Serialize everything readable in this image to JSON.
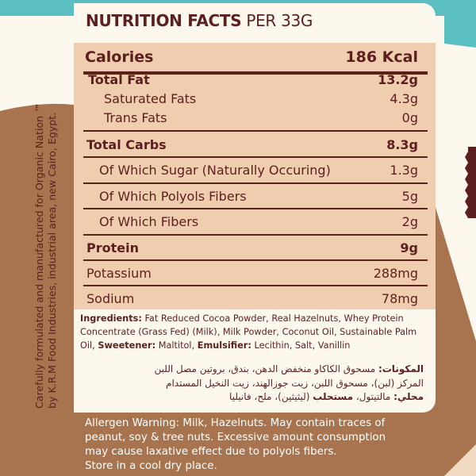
{
  "colors": {
    "teal": "#5bbfc2",
    "brown": "#a8744f",
    "cream": "#fcf8ee",
    "peach": "#efcdae",
    "text": "#5b1f1f"
  },
  "side_text": [
    "Carefully formulated and manufactured for Organic Nation ™",
    "by K.R.M Food Industries, industrial area, new Cairo, Egypt."
  ],
  "title": {
    "main": "NUTRITION FACTS",
    "per": "PER 33G"
  },
  "rows": [
    {
      "label": "Calories",
      "value": "186 Kcal"
    },
    {
      "label": "Total Fat",
      "value": "13.2g"
    },
    {
      "label": "Saturated Fats",
      "value": "4.3g"
    },
    {
      "label": "Trans Fats",
      "value": "0g"
    },
    {
      "label": "Total Carbs",
      "value": "8.3g"
    },
    {
      "label": "Of Which Sugar (Naturally Occuring)",
      "value": "1.3g"
    },
    {
      "label": "Of Which Polyols Fibers",
      "value": "5g"
    },
    {
      "label": "Of Which Fibers",
      "value": "2g"
    },
    {
      "label": "Protein",
      "value": "9g"
    },
    {
      "label": "Potassium",
      "value": "288mg"
    },
    {
      "label": "Sodium",
      "value": "78mg"
    }
  ],
  "ingredients": {
    "label": "Ingredients:",
    "text1": " Fat Reduced Cocoa Powder, Real Hazelnuts, Whey Protein Concentrate (Grass Fed) (Milk), Milk Powder, Coconut Oil, Sustainable Palm Oil, ",
    "sweet_label": "Sweetener:",
    "sweet": " Maltitol, ",
    "emul_label": "Emulsifier:",
    "emul": " Lecithin, Salt, Vanillin"
  },
  "arabic": {
    "label1": "المكونات:",
    "line1": " مسحوق الكاكاو منخفض الدهن، بندق، بروتين مصل اللبن",
    "line2": "المركز (لبن)، مسحوق اللبن، زيت جوزالهند، زيت النخيل المستدام",
    "label3": "محلي:",
    "line3a": " مالتيتول، ",
    "label3b": "مستحلب",
    "line3b": " (ليثيثين)، ملح، فانيليا"
  },
  "warning": [
    "Allergen Warning: Milk, Hazelnuts. May contain traces of",
    "peanut, soy & tree nuts. Excessive amount consumption",
    "may cause laxative effect due to polyols fibers.",
    "Store in a cool dry place."
  ]
}
